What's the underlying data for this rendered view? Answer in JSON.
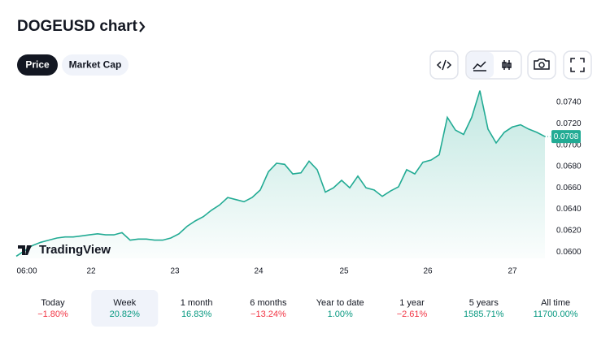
{
  "header": {
    "title": "DOGEUSD chart"
  },
  "tabs": [
    {
      "label": "Price",
      "active": true
    },
    {
      "label": "Market Cap",
      "active": false
    }
  ],
  "watermark": "TradingView",
  "chart_data": {
    "type": "area",
    "color": "#22ab94",
    "values": [
      0.0596,
      0.0601,
      0.0606,
      0.0609,
      0.0611,
      0.0613,
      0.0614,
      0.0614,
      0.0615,
      0.0616,
      0.0617,
      0.0616,
      0.0616,
      0.0618,
      0.0611,
      0.0612,
      0.0612,
      0.0611,
      0.0611,
      0.0613,
      0.0617,
      0.0624,
      0.0629,
      0.0633,
      0.0639,
      0.0644,
      0.0651,
      0.0649,
      0.0647,
      0.0651,
      0.0658,
      0.0675,
      0.0683,
      0.0682,
      0.0673,
      0.0674,
      0.0685,
      0.0677,
      0.0656,
      0.066,
      0.0667,
      0.066,
      0.0671,
      0.066,
      0.0658,
      0.0652,
      0.0657,
      0.0661,
      0.0677,
      0.0673,
      0.0684,
      0.0686,
      0.0691,
      0.0726,
      0.0714,
      0.071,
      0.0726,
      0.0751,
      0.0715,
      0.0702,
      0.0712,
      0.0717,
      0.0719,
      0.0715,
      0.0712,
      0.0708
    ],
    "last_value_label": "0.0708",
    "xtick_labels": [
      "06:00",
      "22",
      "23",
      "24",
      "25",
      "26",
      "27"
    ],
    "ylim": [
      0.0594,
      0.0756
    ],
    "yticks": [
      {
        "value": 0.06,
        "label": "0.0600"
      },
      {
        "value": 0.062,
        "label": "0.0620"
      },
      {
        "value": 0.064,
        "label": "0.0640"
      },
      {
        "value": 0.066,
        "label": "0.0660"
      },
      {
        "value": 0.068,
        "label": "0.0680"
      },
      {
        "value": 0.07,
        "label": "0.0700"
      },
      {
        "value": 0.072,
        "label": "0.0720"
      },
      {
        "value": 0.074,
        "label": "0.0740"
      }
    ]
  },
  "periods": [
    {
      "label": "Today",
      "change": "−1.80%",
      "up": false,
      "active": false
    },
    {
      "label": "Week",
      "change": "20.82%",
      "up": true,
      "active": true
    },
    {
      "label": "1 month",
      "change": "16.83%",
      "up": true,
      "active": false
    },
    {
      "label": "6 months",
      "change": "−13.24%",
      "up": false,
      "active": false
    },
    {
      "label": "Year to date",
      "change": "1.00%",
      "up": true,
      "active": false
    },
    {
      "label": "1 year",
      "change": "−2.61%",
      "up": false,
      "active": false
    },
    {
      "label": "5 years",
      "change": "1585.71%",
      "up": true,
      "active": false
    },
    {
      "label": "All time",
      "change": "11700.00%",
      "up": true,
      "active": false
    }
  ]
}
